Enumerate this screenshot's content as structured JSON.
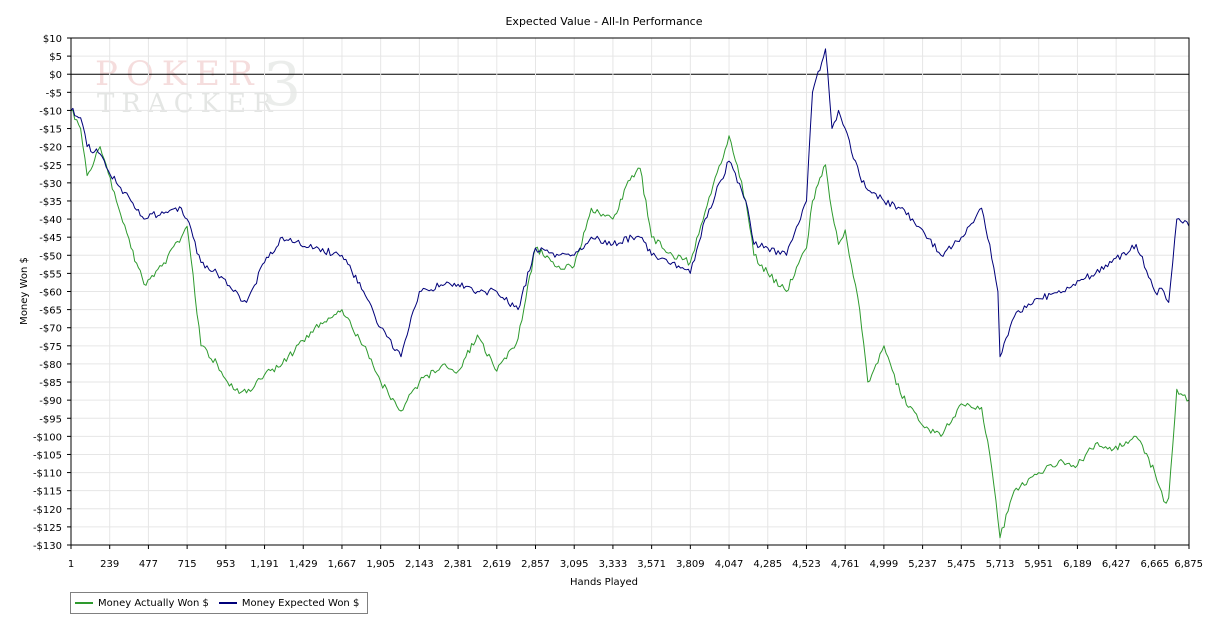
{
  "watermark": {
    "line1": "POKER",
    "line2": "TRACKER",
    "mark": "3"
  },
  "colors": {
    "actual": "#2e9a2e",
    "expected": "#00007a",
    "grid": "#e6e6e6",
    "zero": "#000000"
  },
  "legend": {
    "actual_label": "Money Actually Won $",
    "expected_label": "Money Expected Won $"
  },
  "chart_data": {
    "type": "line",
    "title": "Expected Value - All-In Performance",
    "xlabel": "Hands Played",
    "ylabel": "Money Won $",
    "xlim": [
      1,
      6875
    ],
    "ylim": [
      -130,
      10
    ],
    "x_ticks": [
      1,
      239,
      477,
      715,
      953,
      1191,
      1429,
      1667,
      1905,
      2143,
      2381,
      2619,
      2857,
      3095,
      3333,
      3571,
      3809,
      4047,
      4285,
      4523,
      4761,
      4999,
      5237,
      5475,
      5713,
      5951,
      6189,
      6427,
      6665,
      6875
    ],
    "x_tick_labels": [
      "1",
      "239",
      "477",
      "715",
      "953",
      "1,191",
      "1,429",
      "1,667",
      "1,905",
      "2,143",
      "2,381",
      "2,619",
      "2,857",
      "3,095",
      "3,333",
      "3,571",
      "3,809",
      "4,047",
      "4,285",
      "4,523",
      "4,761",
      "4,999",
      "5,237",
      "5,475",
      "5,713",
      "5,951",
      "6,189",
      "6,427",
      "6,665",
      "6,875"
    ],
    "y_ticks": [
      10,
      5,
      0,
      -5,
      -10,
      -15,
      -20,
      -25,
      -30,
      -35,
      -40,
      -45,
      -50,
      -55,
      -60,
      -65,
      -70,
      -75,
      -80,
      -85,
      -90,
      -95,
      -100,
      -105,
      -110,
      -115,
      -120,
      -125,
      -130
    ],
    "y_tick_labels": [
      "$10",
      "$5",
      "$0",
      "-$5",
      "-$10",
      "-$15",
      "-$20",
      "-$25",
      "-$30",
      "-$35",
      "-$40",
      "-$45",
      "-$50",
      "-$55",
      "-$60",
      "-$65",
      "-$70",
      "-$75",
      "-$80",
      "-$85",
      "-$90",
      "-$95",
      "-$100",
      "-$105",
      "-$110",
      "-$115",
      "-$120",
      "-$125",
      "-$130"
    ],
    "grid": true,
    "legend_position": "bottom-left",
    "series": [
      {
        "name": "Money Actually Won $",
        "x": [
          1,
          60,
          100,
          180,
          280,
          370,
          450,
          560,
          680,
          715,
          800,
          900,
          1000,
          1080,
          1191,
          1300,
          1500,
          1667,
          1800,
          1905,
          2030,
          2143,
          2300,
          2381,
          2500,
          2619,
          2750,
          2857,
          3000,
          3095,
          3200,
          3333,
          3450,
          3500,
          3571,
          3700,
          3809,
          3900,
          4047,
          4150,
          4200,
          4285,
          4400,
          4523,
          4560,
          4640,
          4680,
          4720,
          4761,
          4850,
          4900,
          5000,
          5100,
          5237,
          5350,
          5475,
          5600,
          5650,
          5700,
          5713,
          5800,
          5951,
          6100,
          6189,
          6300,
          6400,
          6550,
          6665,
          6720,
          6750,
          6800,
          6875
        ],
        "y": [
          -10,
          -15,
          -28,
          -20,
          -35,
          -48,
          -58,
          -53,
          -45,
          -42,
          -75,
          -80,
          -87,
          -88,
          -83,
          -80,
          -70,
          -65,
          -75,
          -85,
          -93,
          -85,
          -80,
          -82,
          -72,
          -82,
          -73,
          -48,
          -53,
          -53,
          -37,
          -40,
          -28,
          -26,
          -45,
          -50,
          -52,
          -38,
          -17,
          -35,
          -50,
          -55,
          -60,
          -48,
          -35,
          -25,
          -38,
          -47,
          -43,
          -65,
          -85,
          -75,
          -88,
          -97,
          -100,
          -91,
          -92,
          -105,
          -123,
          -128,
          -115,
          -110,
          -107,
          -108,
          -102,
          -104,
          -100,
          -110,
          -118,
          -117,
          -87,
          -90
        ]
      },
      {
        "name": "Money Expected Won $",
        "x": [
          1,
          60,
          100,
          180,
          280,
          370,
          450,
          560,
          680,
          715,
          800,
          900,
          1000,
          1080,
          1191,
          1300,
          1500,
          1667,
          1800,
          1905,
          2030,
          2143,
          2300,
          2381,
          2500,
          2619,
          2750,
          2857,
          3000,
          3095,
          3200,
          3333,
          3450,
          3500,
          3571,
          3700,
          3809,
          3900,
          4047,
          4150,
          4200,
          4285,
          4400,
          4523,
          4560,
          4640,
          4680,
          4720,
          4761,
          4850,
          4900,
          5000,
          5100,
          5237,
          5350,
          5475,
          5600,
          5650,
          5700,
          5713,
          5800,
          5951,
          6100,
          6189,
          6300,
          6400,
          6550,
          6665,
          6720,
          6750,
          6800,
          6875
        ],
        "y": [
          -10,
          -12,
          -20,
          -22,
          -30,
          -35,
          -40,
          -38,
          -37,
          -40,
          -52,
          -55,
          -60,
          -63,
          -52,
          -45,
          -48,
          -50,
          -60,
          -70,
          -78,
          -60,
          -58,
          -58,
          -60,
          -60,
          -65,
          -48,
          -50,
          -50,
          -45,
          -47,
          -45,
          -45,
          -50,
          -52,
          -55,
          -40,
          -24,
          -35,
          -47,
          -48,
          -50,
          -35,
          -5,
          7,
          -15,
          -10,
          -15,
          -28,
          -32,
          -35,
          -37,
          -43,
          -50,
          -45,
          -37,
          -47,
          -60,
          -78,
          -67,
          -62,
          -60,
          -57,
          -55,
          -52,
          -47,
          -60,
          -60,
          -63,
          -40,
          -42
        ]
      }
    ]
  }
}
